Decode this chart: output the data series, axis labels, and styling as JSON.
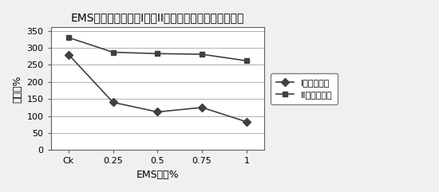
{
  "title": "EMS处理对大花萱草I类、II类愈伤组织的成苗率的影响",
  "xlabel": "EMS浓度%",
  "ylabel": "成苗率%",
  "x_labels": [
    "Ck",
    "0.25",
    "0.5",
    "0.75",
    "1"
  ],
  "series1_label": "I类愈伤组织",
  "series1_values": [
    280,
    140,
    112,
    125,
    83
  ],
  "series2_label": "II类愈伤组织",
  "series2_values": [
    330,
    287,
    283,
    281,
    262
  ],
  "ylim": [
    0,
    360
  ],
  "yticks": [
    0,
    50,
    100,
    150,
    200,
    250,
    300,
    350
  ],
  "line_color": "#404040",
  "marker1": "D",
  "marker2": "s",
  "marker_size": 5,
  "title_fontsize": 10,
  "axis_fontsize": 9,
  "tick_fontsize": 8,
  "legend_fontsize": 8,
  "bg_color": "#f0f0f0",
  "plot_bg_color": "#ffffff"
}
